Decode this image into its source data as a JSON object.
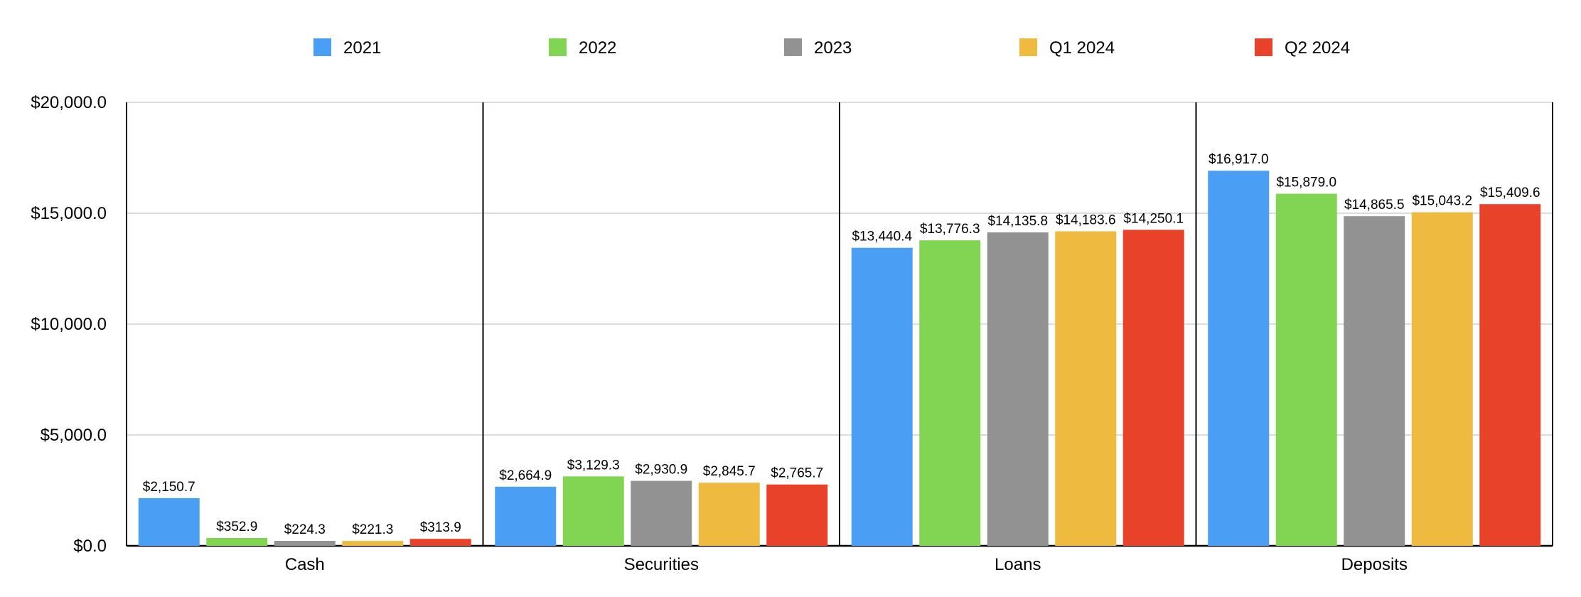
{
  "chart_data": {
    "type": "bar",
    "title": "",
    "xlabel": "",
    "ylabel": "",
    "categories": [
      "Cash",
      "Securities",
      "Loans",
      "Deposits"
    ],
    "series": [
      {
        "name": "2021",
        "color": "#4A9FF5",
        "values": [
          2150.7,
          2664.9,
          13440.4,
          16917.0
        ],
        "labels": [
          "$2,150.7",
          "$2,664.9",
          "$13,440.4",
          "$16,917.0"
        ]
      },
      {
        "name": "2022",
        "color": "#82D552",
        "values": [
          352.9,
          3129.3,
          13776.3,
          15879.0
        ],
        "labels": [
          "$352.9",
          "$3,129.3",
          "$13,776.3",
          "$15,879.0"
        ]
      },
      {
        "name": "2023",
        "color": "#929292",
        "values": [
          224.3,
          2930.9,
          14135.8,
          14865.5
        ],
        "labels": [
          "$224.3",
          "$2,930.9",
          "$14,135.8",
          "$14,865.5"
        ]
      },
      {
        "name": "Q1 2024",
        "color": "#EEBA40",
        "values": [
          221.3,
          2845.7,
          14183.6,
          15043.2
        ],
        "labels": [
          "$221.3",
          "$2,845.7",
          "$14,183.6",
          "$15,043.2"
        ]
      },
      {
        "name": "Q2 2024",
        "color": "#E8432A",
        "values": [
          313.9,
          2765.7,
          14250.1,
          15409.6
        ],
        "labels": [
          "$313.9",
          "$2,765.7",
          "$14,250.1",
          "$15,409.6"
        ]
      }
    ],
    "ylim": [
      0,
      20000
    ],
    "y_ticks": [
      0,
      5000,
      10000,
      15000,
      20000
    ],
    "y_tick_labels": [
      "$0.0",
      "$5,000.0",
      "$10,000.0",
      "$15,000.0",
      "$20,000.0"
    ],
    "grid": true,
    "legend_position": "top"
  }
}
